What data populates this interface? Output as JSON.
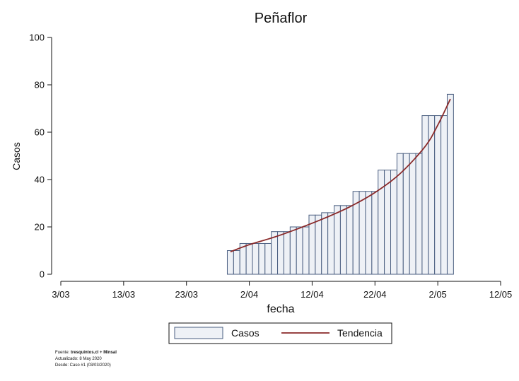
{
  "chart_data": {
    "type": "bar",
    "title": "Peñaflor",
    "xlabel": "fecha",
    "ylabel": "Casos",
    "ylim": [
      0,
      100
    ],
    "yticks": [
      0,
      20,
      40,
      60,
      80,
      100
    ],
    "x_range": [
      "2020-03-03",
      "2020-05-12"
    ],
    "xticks": [
      {
        "date": "2020-03-03",
        "label": "3/03"
      },
      {
        "date": "2020-03-13",
        "label": "13/03"
      },
      {
        "date": "2020-03-23",
        "label": "23/03"
      },
      {
        "date": "2020-04-02",
        "label": "2/04"
      },
      {
        "date": "2020-04-12",
        "label": "12/04"
      },
      {
        "date": "2020-04-22",
        "label": "22/04"
      },
      {
        "date": "2020-05-02",
        "label": "2/05"
      },
      {
        "date": "2020-05-12",
        "label": "12/05"
      }
    ],
    "series": [
      {
        "name": "Casos",
        "dates": [
          "2020-03-30",
          "2020-03-31",
          "2020-04-01",
          "2020-04-02",
          "2020-04-03",
          "2020-04-04",
          "2020-04-05",
          "2020-04-06",
          "2020-04-07",
          "2020-04-08",
          "2020-04-09",
          "2020-04-10",
          "2020-04-11",
          "2020-04-12",
          "2020-04-13",
          "2020-04-14",
          "2020-04-15",
          "2020-04-16",
          "2020-04-17",
          "2020-04-18",
          "2020-04-19",
          "2020-04-20",
          "2020-04-21",
          "2020-04-22",
          "2020-04-23",
          "2020-04-24",
          "2020-04-25",
          "2020-04-26",
          "2020-04-27",
          "2020-04-28",
          "2020-04-29",
          "2020-04-30",
          "2020-05-01",
          "2020-05-02",
          "2020-05-03",
          "2020-05-04"
        ],
        "values": [
          10,
          10,
          13,
          13,
          13,
          13,
          13,
          18,
          18,
          18,
          20,
          20,
          20,
          25,
          25,
          26,
          26,
          29,
          29,
          29,
          35,
          35,
          35,
          35,
          44,
          44,
          44,
          51,
          51,
          51,
          51,
          67,
          67,
          67,
          67,
          76
        ],
        "color": "#eef1f6",
        "edge_color": "#4a5e80"
      },
      {
        "name": "Tendencia",
        "type": "line",
        "dates": [
          "2020-03-30",
          "2020-04-02",
          "2020-04-06",
          "2020-04-10",
          "2020-04-14",
          "2020-04-18",
          "2020-04-22",
          "2020-04-26",
          "2020-04-30",
          "2020-05-02",
          "2020-05-04"
        ],
        "values": [
          9.5,
          12.5,
          15.7,
          19.5,
          23.7,
          28.5,
          34.5,
          42.5,
          54,
          63,
          74
        ],
        "color": "#8a2a2a"
      }
    ],
    "legend": {
      "position": "bottom",
      "entries": [
        "Casos",
        "Tendencia"
      ]
    },
    "grid": false
  },
  "footer": {
    "source_prefix": "Fuente: ",
    "source_bold": "tresquintos.cl + Minsal",
    "updated": "Actualizado: 8 May 2020",
    "since": "Desde: Caso #1  (03/03/2020)"
  }
}
